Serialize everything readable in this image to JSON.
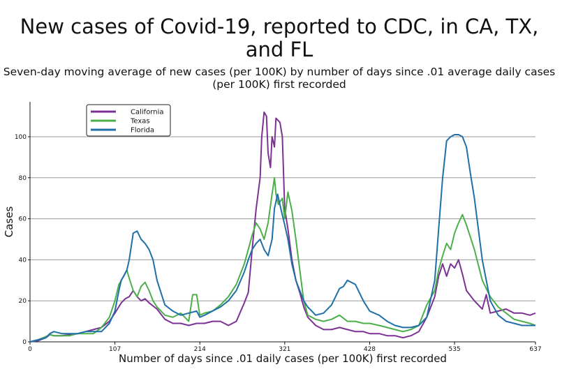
{
  "chart_data": {
    "type": "line",
    "title": "New cases of Covid-19, reported to CDC, in CA, TX, and FL",
    "subtitle": "Seven-day moving average of new cases (per 100K) by number of days since .01 average daily cases (per 100K) first recorded",
    "xlabel": "Number of days since .01 daily cases (per 100K) first recorded",
    "ylabel": "Cases",
    "xlim": [
      0,
      637
    ],
    "ylim": [
      0,
      117
    ],
    "xticks": [
      0,
      107,
      214,
      321,
      428,
      535,
      637
    ],
    "yticks": [
      0,
      20,
      40,
      60,
      80,
      100
    ],
    "grid": "horizontal",
    "legend_position": "top-left",
    "series": [
      {
        "name": "California",
        "color": "#7b3294",
        "x": [
          0,
          10,
          20,
          25,
          30,
          40,
          50,
          60,
          70,
          80,
          90,
          100,
          107,
          115,
          120,
          125,
          130,
          135,
          140,
          145,
          150,
          160,
          170,
          180,
          190,
          200,
          210,
          214,
          220,
          230,
          240,
          250,
          260,
          270,
          275,
          280,
          285,
          290,
          292,
          295,
          298,
          300,
          303,
          305,
          308,
          310,
          315,
          318,
          321,
          325,
          330,
          335,
          340,
          345,
          350,
          360,
          370,
          380,
          390,
          400,
          410,
          420,
          428,
          440,
          450,
          460,
          470,
          480,
          490,
          500,
          505,
          510,
          515,
          520,
          525,
          530,
          535,
          540,
          545,
          550,
          560,
          570,
          575,
          580,
          590,
          600,
          610,
          620,
          630,
          637
        ],
        "y": [
          0,
          0.5,
          2,
          3.5,
          3,
          3,
          3.5,
          4,
          5,
          6,
          7,
          10,
          14,
          19,
          21,
          22,
          25,
          22,
          20,
          21,
          19,
          16,
          11,
          9,
          9,
          8,
          9,
          9,
          9,
          10,
          10,
          8,
          10,
          19,
          24,
          45,
          65,
          80,
          100,
          112,
          110,
          92,
          85,
          100,
          95,
          109,
          107,
          100,
          65,
          55,
          40,
          30,
          24,
          17,
          12,
          8,
          6,
          6,
          7,
          6,
          5,
          5,
          4,
          4,
          3,
          3,
          2,
          3,
          5,
          12,
          17,
          22,
          32,
          38,
          32,
          38,
          36,
          40,
          33,
          25,
          20,
          16,
          23,
          14,
          15,
          16,
          14,
          14,
          13,
          14
        ]
      },
      {
        "name": "Texas",
        "color": "#4daf4a",
        "x": [
          0,
          10,
          20,
          25,
          30,
          40,
          50,
          60,
          70,
          80,
          90,
          100,
          107,
          112,
          118,
          122,
          125,
          130,
          135,
          140,
          145,
          150,
          155,
          160,
          170,
          180,
          190,
          200,
          205,
          210,
          214,
          220,
          230,
          240,
          250,
          260,
          265,
          270,
          275,
          280,
          285,
          290,
          295,
          300,
          305,
          308,
          310,
          313,
          318,
          321,
          325,
          330,
          335,
          340,
          345,
          350,
          355,
          360,
          370,
          380,
          390,
          400,
          410,
          420,
          428,
          440,
          450,
          460,
          470,
          480,
          490,
          500,
          510,
          515,
          520,
          525,
          530,
          535,
          540,
          545,
          550,
          560,
          570,
          580,
          590,
          600,
          610,
          620,
          630,
          637
        ],
        "y": [
          0,
          1,
          2.5,
          3.5,
          3,
          3,
          3,
          4,
          4,
          4,
          7,
          12,
          20,
          28,
          32,
          35,
          31,
          25,
          22,
          27,
          29,
          25,
          20,
          17,
          13,
          12,
          14,
          10,
          23,
          23,
          13,
          14,
          15,
          18,
          22,
          28,
          33,
          38,
          45,
          52,
          58,
          55,
          50,
          58,
          72,
          80,
          72,
          67,
          70,
          60,
          73,
          64,
          50,
          35,
          20,
          13,
          12,
          11,
          10,
          11,
          13,
          10,
          10,
          9,
          9,
          8,
          7,
          6,
          5,
          6,
          8,
          18,
          25,
          35,
          42,
          48,
          45,
          53,
          58,
          62,
          57,
          45,
          30,
          22,
          17,
          14,
          11,
          10,
          9,
          8
        ]
      },
      {
        "name": "Florida",
        "color": "#1f6fa8",
        "x": [
          0,
          10,
          20,
          25,
          30,
          40,
          50,
          60,
          70,
          80,
          90,
          100,
          107,
          112,
          115,
          118,
          122,
          125,
          130,
          135,
          140,
          145,
          150,
          155,
          160,
          170,
          180,
          190,
          200,
          210,
          214,
          220,
          230,
          240,
          250,
          260,
          270,
          275,
          280,
          285,
          290,
          295,
          300,
          305,
          308,
          312,
          316,
          321,
          325,
          330,
          335,
          340,
          345,
          350,
          360,
          370,
          380,
          385,
          390,
          395,
          400,
          410,
          420,
          428,
          440,
          450,
          460,
          470,
          480,
          490,
          500,
          510,
          515,
          520,
          525,
          530,
          535,
          540,
          545,
          550,
          555,
          560,
          570,
          580,
          590,
          600,
          610,
          620,
          630,
          637
        ],
        "y": [
          0,
          1,
          2,
          4,
          5,
          4,
          4,
          4,
          5,
          5,
          5,
          9,
          15,
          25,
          30,
          32,
          35,
          40,
          53,
          54,
          50,
          48,
          45,
          40,
          30,
          18,
          15,
          13,
          14,
          15,
          12,
          13,
          15,
          17,
          20,
          25,
          34,
          40,
          45,
          48,
          50,
          45,
          42,
          50,
          65,
          72,
          65,
          57,
          50,
          38,
          30,
          25,
          20,
          17,
          13,
          14,
          18,
          22,
          26,
          27,
          30,
          28,
          20,
          15,
          13,
          10,
          8,
          7,
          7,
          8,
          12,
          30,
          55,
          80,
          98,
          100,
          101,
          101,
          100,
          95,
          82,
          70,
          40,
          20,
          13,
          10,
          9,
          8,
          8,
          8
        ]
      }
    ]
  }
}
